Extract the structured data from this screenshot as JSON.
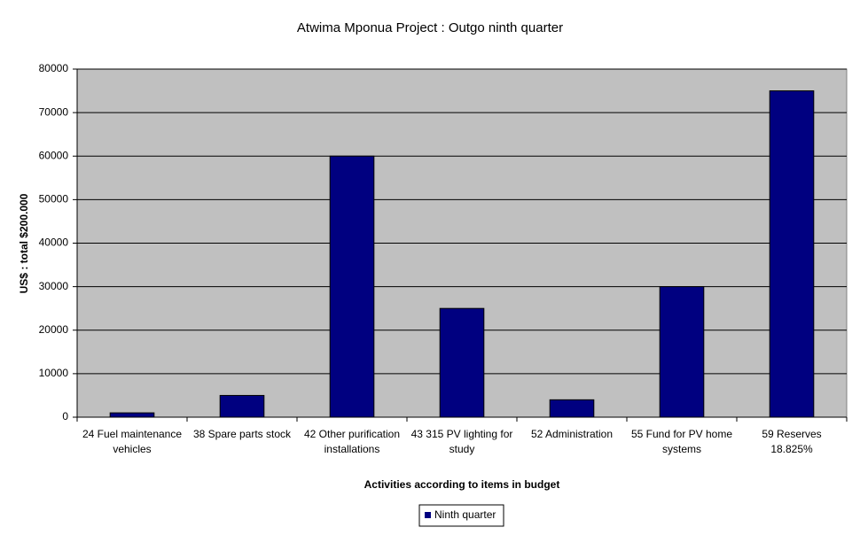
{
  "chart_data": {
    "type": "bar",
    "title": "Atwima Mponua Project : Outgo ninth quarter",
    "x_label": "Activities according to items in budget",
    "y_label": "US$ : total $200.000",
    "categories": [
      "24 Fuel maintenance vehicles",
      "38 Spare parts stock",
      "42 Other purification installations",
      "43 315 PV lighting for study",
      "52 Administration",
      "55 Fund for PV home systems",
      "59 Reserves 18.825%"
    ],
    "series": [
      {
        "name": "Ninth quarter",
        "color": "#000080",
        "values": [
          1000,
          5000,
          60000,
          25000,
          4000,
          30000,
          75000
        ]
      }
    ],
    "ylim": [
      0,
      80000
    ],
    "yticks": [
      0,
      10000,
      20000,
      30000,
      40000,
      50000,
      60000,
      70000,
      80000
    ],
    "grid": true,
    "legend": "bottom"
  }
}
